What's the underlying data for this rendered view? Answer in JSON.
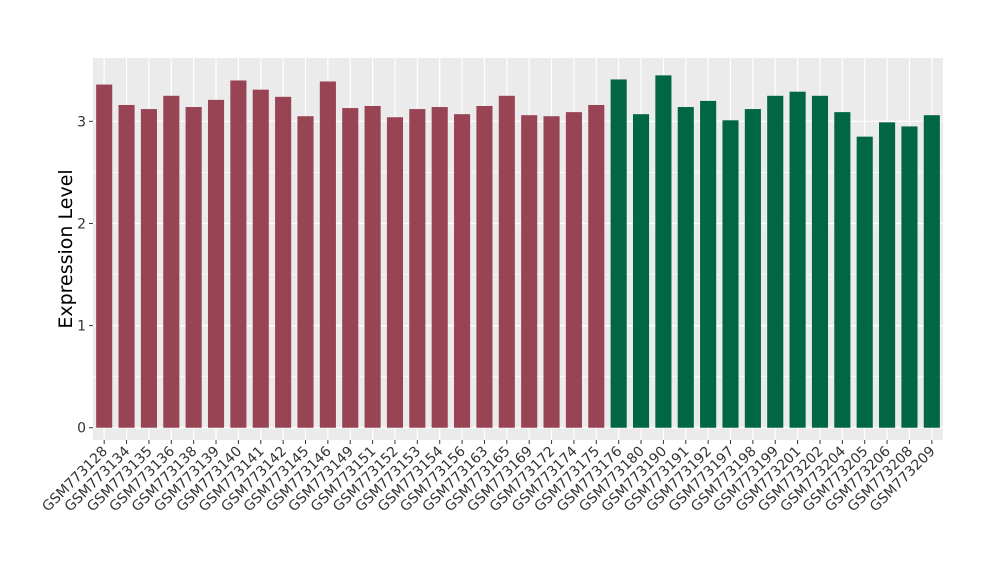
{
  "chart_data": {
    "type": "bar",
    "ylabel": "Expression Level",
    "xlabel": "",
    "ylim": [
      -0.12,
      3.62
    ],
    "yticks": [
      0,
      1,
      2,
      3
    ],
    "grid": true,
    "legend": "none",
    "colors": {
      "group_a": "#994455",
      "group_b": "#006644",
      "panel": "#ebebeb",
      "gridline": "#ffffff"
    },
    "categories": [
      "GSM773128",
      "GSM773134",
      "GSM773135",
      "GSM773136",
      "GSM773138",
      "GSM773139",
      "GSM773140",
      "GSM773141",
      "GSM773142",
      "GSM773145",
      "GSM773146",
      "GSM773149",
      "GSM773151",
      "GSM773152",
      "GSM773153",
      "GSM773154",
      "GSM773156",
      "GSM773163",
      "GSM773165",
      "GSM773169",
      "GSM773172",
      "GSM773174",
      "GSM773175",
      "GSM773176",
      "GSM773180",
      "GSM773190",
      "GSM773191",
      "GSM773192",
      "GSM773197",
      "GSM773198",
      "GSM773199",
      "GSM773201",
      "GSM773202",
      "GSM773204",
      "GSM773205",
      "GSM773206",
      "GSM773208",
      "GSM773209"
    ],
    "values": [
      3.36,
      3.16,
      3.12,
      3.25,
      3.14,
      3.21,
      3.4,
      3.31,
      3.24,
      3.05,
      3.39,
      3.13,
      3.15,
      3.04,
      3.12,
      3.14,
      3.07,
      3.15,
      3.25,
      3.06,
      3.05,
      3.09,
      3.16,
      3.41,
      3.07,
      3.45,
      3.14,
      3.2,
      3.01,
      3.12,
      3.25,
      3.29,
      3.25,
      3.09,
      2.85,
      2.99,
      2.95,
      3.06
    ],
    "groups": [
      "a",
      "a",
      "a",
      "a",
      "a",
      "a",
      "a",
      "a",
      "a",
      "a",
      "a",
      "a",
      "a",
      "a",
      "a",
      "a",
      "a",
      "a",
      "a",
      "a",
      "a",
      "a",
      "a",
      "b",
      "b",
      "b",
      "b",
      "b",
      "b",
      "b",
      "b",
      "b",
      "b",
      "b",
      "b",
      "b",
      "b",
      "b"
    ]
  }
}
